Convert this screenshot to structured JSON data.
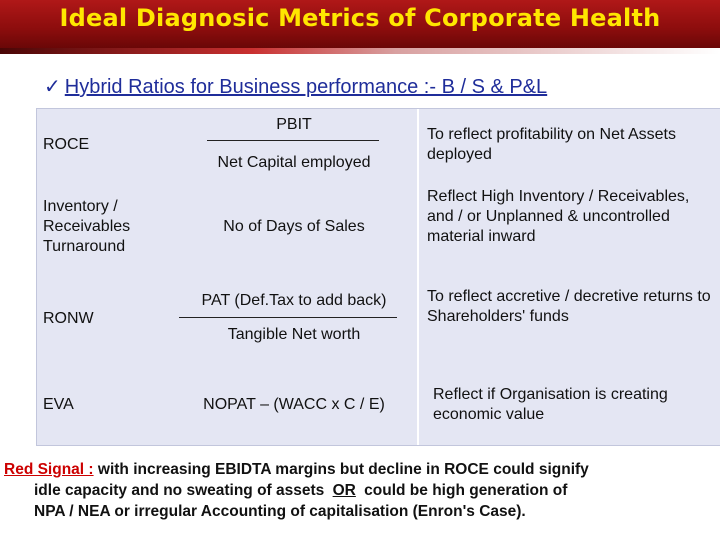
{
  "header": {
    "title": "Ideal Diagnosic Metrics of Corporate Health"
  },
  "subtitle": {
    "check": "✓",
    "text": "Hybrid Ratios for Business performance :- B / S & P&L"
  },
  "rows": [
    {
      "metric": "ROCE",
      "numerator": "PBIT",
      "denominator": "Net Capital employed",
      "description": "To reflect profitability on Net Assets deployed"
    },
    {
      "metric": "Inventory / Receivables Turnaround",
      "formula": "No of Days of Sales",
      "description": "Reflect High Inventory / Receivables, and / or Unplanned & uncontrolled material inward"
    },
    {
      "metric": "RONW",
      "numerator": "PAT (Def.Tax to add back)",
      "denominator": "Tangible Net worth",
      "description": "To reflect accretive / decretive returns to Shareholders' funds"
    },
    {
      "metric": "EVA",
      "formula": "NOPAT – (WACC x C / E)",
      "description": "Reflect if Organisation is creating economic value"
    }
  ],
  "footer": {
    "red_label": "Red Signal :",
    "line1": "with increasing EBIDTA margins but decline in ROCE could signify",
    "line2a": "idle capacity and no sweating of assets",
    "or_text": "OR",
    "line2b": "could be high generation of",
    "line3": "NPA / NEA or irregular Accounting of capitalisation (Enron's Case)."
  }
}
